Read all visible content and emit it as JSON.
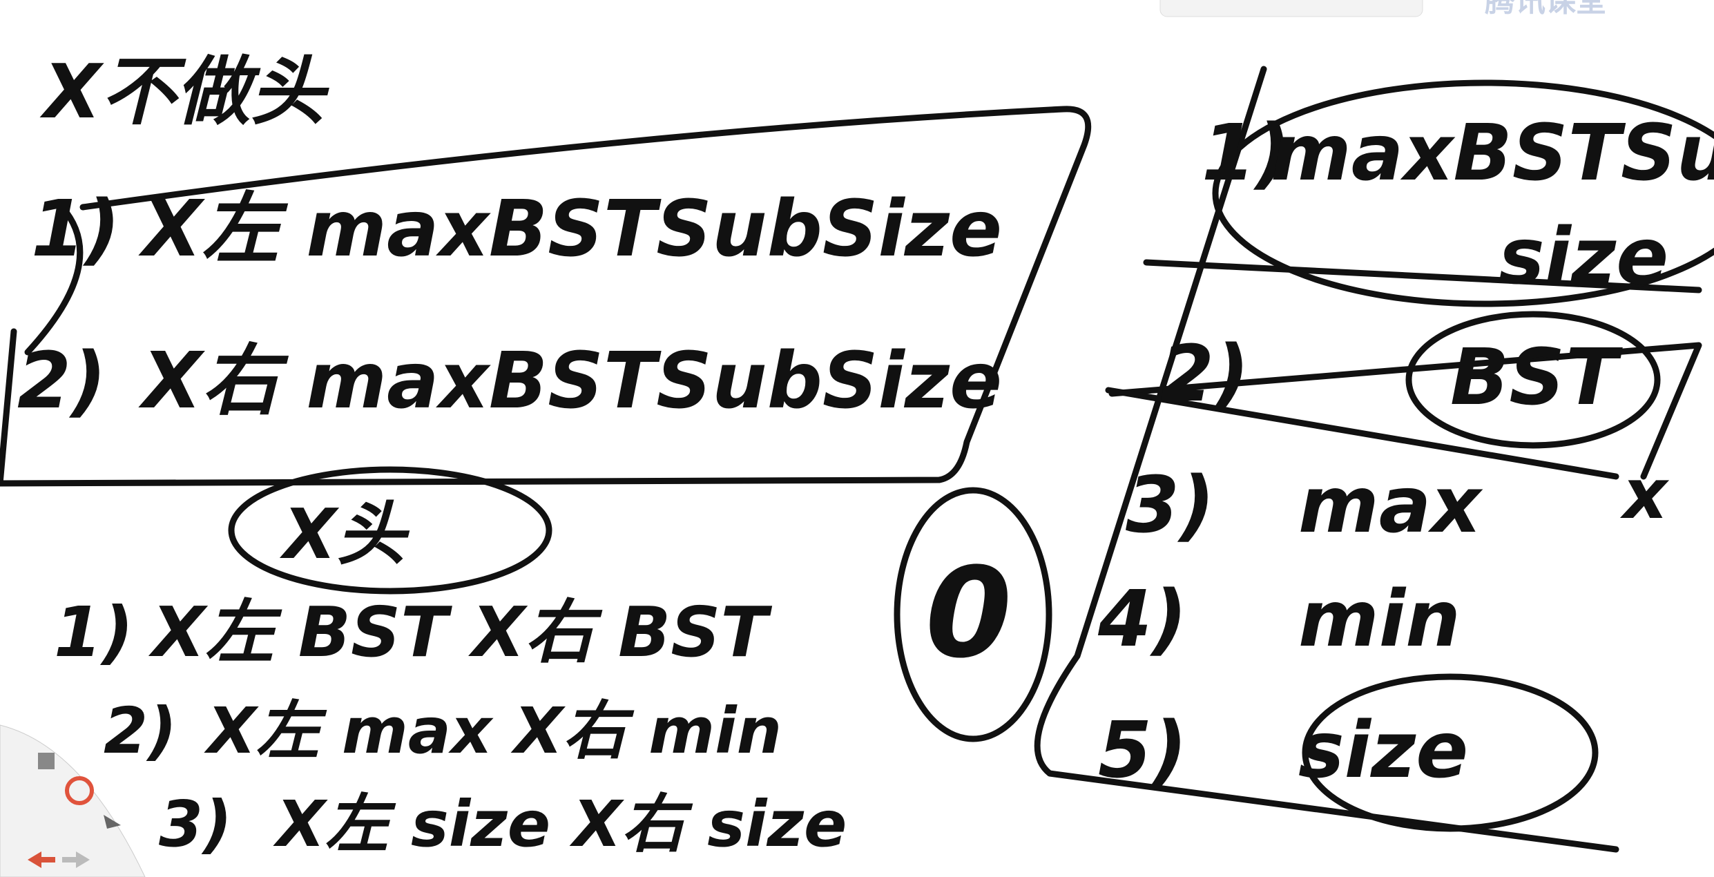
{
  "header": {
    "logo": "腾讯课堂"
  },
  "notes": {
    "title": "X不做头",
    "case_a": [
      {
        "num": "1)",
        "text": "X左 maxBSTSubSize"
      },
      {
        "num": "2)",
        "text": "X右 maxBSTSubSize"
      }
    ],
    "case_b_title": "X头",
    "case_b": [
      {
        "num": "1)",
        "text": "X左 BST   X右 BST"
      },
      {
        "num": "2)",
        "text": "X左 max   X右 min"
      },
      {
        "num": "3)",
        "text": "X左 size   X右 size"
      }
    ],
    "zero": "0"
  },
  "info": {
    "items": [
      {
        "num": "1)",
        "text": "maxBSTSub",
        "text2": "size"
      },
      {
        "num": "2)",
        "text": "BST"
      },
      {
        "num": "3)",
        "text": "max"
      },
      {
        "num": "4)",
        "text": "min"
      },
      {
        "num": "5)",
        "text": "size"
      }
    ],
    "mark": "x"
  }
}
